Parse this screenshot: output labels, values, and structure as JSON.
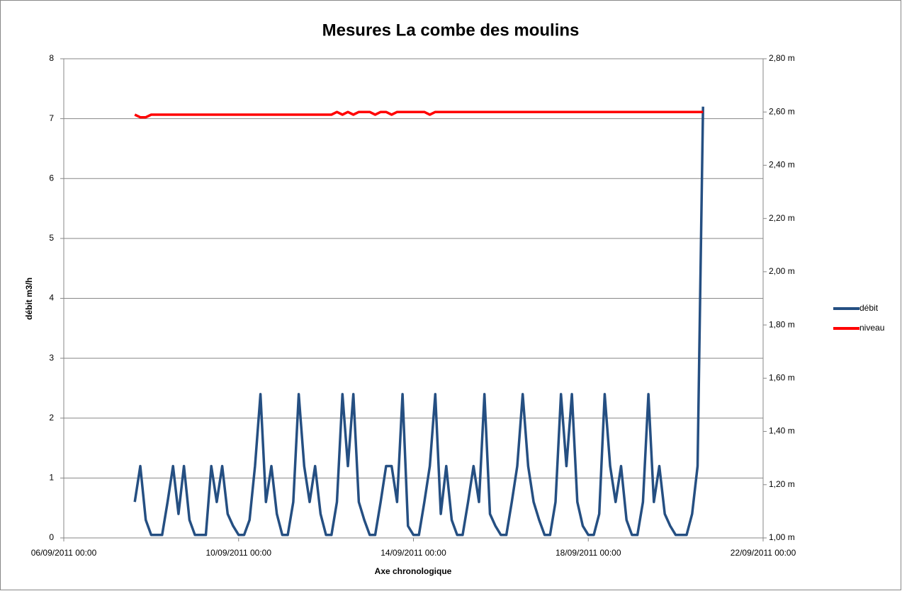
{
  "chart_data": {
    "type": "line",
    "title": "Mesures La combe des moulins",
    "y_label": "débit m3/h",
    "x_label": "Axe chronologique",
    "x": [
      "07/09/2011 15:00",
      "07/09/2011 18:00",
      "07/09/2011 21:00",
      "08/09/2011 00:00",
      "08/09/2011 03:00",
      "08/09/2011 06:00",
      "08/09/2011 09:00",
      "08/09/2011 12:00",
      "08/09/2011 15:00",
      "08/09/2011 18:00",
      "08/09/2011 21:00",
      "09/09/2011 00:00",
      "09/09/2011 03:00",
      "09/09/2011 06:00",
      "09/09/2011 09:00",
      "09/09/2011 12:00",
      "09/09/2011 15:00",
      "09/09/2011 18:00",
      "09/09/2011 21:00",
      "10/09/2011 00:00",
      "10/09/2011 03:00",
      "10/09/2011 06:00",
      "10/09/2011 09:00",
      "10/09/2011 12:00",
      "10/09/2011 15:00",
      "10/09/2011 18:00",
      "10/09/2011 21:00",
      "11/09/2011 00:00",
      "11/09/2011 03:00",
      "11/09/2011 06:00",
      "11/09/2011 09:00",
      "11/09/2011 12:00",
      "11/09/2011 15:00",
      "11/09/2011 18:00",
      "11/09/2011 21:00",
      "12/09/2011 00:00",
      "12/09/2011 03:00",
      "12/09/2011 06:00",
      "12/09/2011 09:00",
      "12/09/2011 12:00",
      "12/09/2011 15:00",
      "12/09/2011 18:00",
      "12/09/2011 21:00",
      "13/09/2011 00:00",
      "13/09/2011 03:00",
      "13/09/2011 06:00",
      "13/09/2011 09:00",
      "13/09/2011 12:00",
      "13/09/2011 15:00",
      "13/09/2011 18:00",
      "13/09/2011 21:00",
      "14/09/2011 00:00",
      "14/09/2011 03:00",
      "14/09/2011 06:00",
      "14/09/2011 09:00",
      "14/09/2011 12:00",
      "14/09/2011 15:00",
      "14/09/2011 18:00",
      "14/09/2011 21:00",
      "15/09/2011 00:00",
      "15/09/2011 03:00",
      "15/09/2011 06:00",
      "15/09/2011 09:00",
      "15/09/2011 12:00",
      "15/09/2011 15:00",
      "15/09/2011 18:00",
      "15/09/2011 21:00",
      "16/09/2011 00:00",
      "16/09/2011 03:00",
      "16/09/2011 06:00",
      "16/09/2011 09:00",
      "16/09/2011 12:00",
      "16/09/2011 15:00",
      "16/09/2011 18:00",
      "16/09/2011 21:00",
      "17/09/2011 00:00",
      "17/09/2011 03:00",
      "17/09/2011 06:00",
      "17/09/2011 09:00",
      "17/09/2011 12:00",
      "17/09/2011 15:00",
      "17/09/2011 18:00",
      "17/09/2011 21:00",
      "18/09/2011 00:00",
      "18/09/2011 03:00",
      "18/09/2011 06:00",
      "18/09/2011 09:00",
      "18/09/2011 12:00",
      "18/09/2011 15:00",
      "18/09/2011 18:00",
      "18/09/2011 21:00",
      "19/09/2011 00:00",
      "19/09/2011 03:00",
      "19/09/2011 06:00",
      "19/09/2011 09:00",
      "19/09/2011 12:00",
      "19/09/2011 15:00",
      "19/09/2011 18:00",
      "19/09/2011 21:00",
      "20/09/2011 00:00",
      "20/09/2011 03:00",
      "20/09/2011 06:00",
      "20/09/2011 09:00",
      "20/09/2011 12:00",
      "20/09/2011 15:00"
    ],
    "series": [
      {
        "name": "débit",
        "color": "#254f82",
        "values": [
          0.6,
          1.2,
          0.3,
          0.05,
          0.05,
          0.05,
          0.6,
          1.2,
          0.4,
          1.2,
          0.3,
          0.05,
          0.05,
          0.05,
          1.2,
          0.6,
          1.2,
          0.4,
          0.2,
          0.05,
          0.05,
          0.3,
          1.2,
          2.4,
          0.6,
          1.2,
          0.4,
          0.05,
          0.05,
          0.6,
          2.4,
          1.2,
          0.6,
          1.2,
          0.4,
          0.05,
          0.05,
          0.6,
          2.4,
          1.2,
          2.4,
          0.6,
          0.3,
          0.05,
          0.05,
          0.6,
          1.2,
          1.2,
          0.6,
          2.4,
          0.2,
          0.05,
          0.05,
          0.6,
          1.2,
          2.4,
          0.4,
          1.2,
          0.3,
          0.05,
          0.05,
          0.6,
          1.2,
          0.6,
          2.4,
          0.4,
          0.2,
          0.05,
          0.05,
          0.6,
          1.2,
          2.4,
          1.2,
          0.6,
          0.3,
          0.05,
          0.05,
          0.6,
          2.4,
          1.2,
          2.4,
          0.6,
          0.2,
          0.05,
          0.05,
          0.4,
          2.4,
          1.2,
          0.6,
          1.2,
          0.3,
          0.05,
          0.05,
          0.6,
          2.4,
          0.6,
          1.2,
          0.4,
          0.2,
          0.05,
          0.05,
          0.05,
          0.4,
          1.2,
          7.2
        ]
      },
      {
        "name": "niveau",
        "color": "#ff0000",
        "axis": "y2",
        "values": [
          2.59,
          2.58,
          2.58,
          2.59,
          2.59,
          2.59,
          2.59,
          2.59,
          2.59,
          2.59,
          2.59,
          2.59,
          2.59,
          2.59,
          2.59,
          2.59,
          2.59,
          2.59,
          2.59,
          2.59,
          2.59,
          2.59,
          2.59,
          2.59,
          2.59,
          2.59,
          2.59,
          2.59,
          2.59,
          2.59,
          2.59,
          2.59,
          2.59,
          2.59,
          2.59,
          2.59,
          2.59,
          2.6,
          2.59,
          2.6,
          2.59,
          2.6,
          2.6,
          2.6,
          2.59,
          2.6,
          2.6,
          2.59,
          2.6,
          2.6,
          2.6,
          2.6,
          2.6,
          2.6,
          2.59,
          2.6,
          2.6,
          2.6,
          2.6,
          2.6,
          2.6,
          2.6,
          2.6,
          2.6,
          2.6,
          2.6,
          2.6,
          2.6,
          2.6,
          2.6,
          2.6,
          2.6,
          2.6,
          2.6,
          2.6,
          2.6,
          2.6,
          2.6,
          2.6,
          2.6,
          2.6,
          2.6,
          2.6,
          2.6,
          2.6,
          2.6,
          2.6,
          2.6,
          2.6,
          2.6,
          2.6,
          2.6,
          2.6,
          2.6,
          2.6,
          2.6,
          2.6,
          2.6,
          2.6,
          2.6,
          2.6,
          2.6,
          2.6,
          2.6,
          2.6
        ]
      }
    ],
    "xlim": [
      "06/09/2011 00:00",
      "22/09/2011 00:00"
    ],
    "xticks": [
      "06/09/2011 00:00",
      "10/09/2011 00:00",
      "14/09/2011 00:00",
      "18/09/2011 00:00",
      "22/09/2011 00:00"
    ],
    "ylim": [
      0,
      8
    ],
    "yticks": [
      0,
      1,
      2,
      3,
      4,
      5,
      6,
      7,
      8
    ],
    "y2lim": [
      1,
      2.8
    ],
    "y2ticks": [
      {
        "value": 1,
        "label": "1,00 m"
      },
      {
        "value": 1.2,
        "label": "1,20 m"
      },
      {
        "value": 1.4,
        "label": "1,40 m"
      },
      {
        "value": 1.6,
        "label": "1,60 m"
      },
      {
        "value": 1.8,
        "label": "1,80 m"
      },
      {
        "value": 2,
        "label": "2,00 m"
      },
      {
        "value": 2.2,
        "label": "2,20 m"
      },
      {
        "value": 2.4,
        "label": "2,40 m"
      },
      {
        "value": 2.6,
        "label": "2,60 m"
      },
      {
        "value": 2.8,
        "label": "2,80 m"
      }
    ],
    "grid": true,
    "legend": "right"
  }
}
